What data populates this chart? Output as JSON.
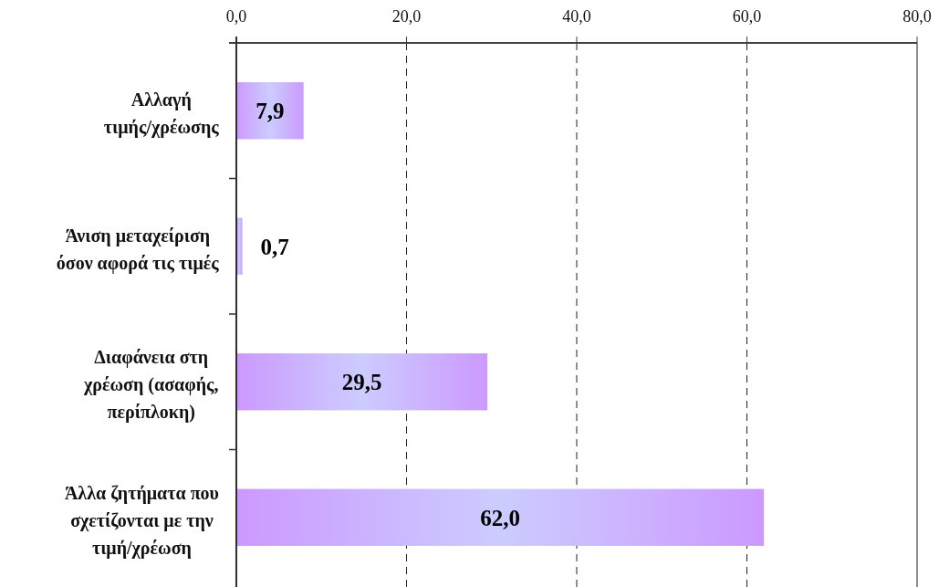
{
  "chart_data": {
    "type": "bar",
    "orientation": "horizontal",
    "categories": [
      "Αλλαγή\nτιμής/χρέωσης",
      "Άνιση μεταχείριση\nόσον αφορά τις τιμές",
      "Διαφάνεια στη\nχρέωση (ασαφής,\nπερίπλοκη)",
      "Άλλα ζητήματα που\nσχετίζονται με την\nτιμή/χρέωση"
    ],
    "values": [
      7.9,
      0.7,
      29.5,
      62.0
    ],
    "value_labels": [
      "7,9",
      "0,7",
      "29,5",
      "62,0"
    ],
    "color": "#cc99ff",
    "xlim": [
      0,
      80
    ],
    "xticks": [
      {
        "value": 0,
        "label": "0,0"
      },
      {
        "value": 20,
        "label": "20,0"
      },
      {
        "value": 40,
        "label": "40,0"
      },
      {
        "value": 60,
        "label": "60,0"
      },
      {
        "value": 80,
        "label": "80,0"
      }
    ],
    "grid": "x"
  }
}
